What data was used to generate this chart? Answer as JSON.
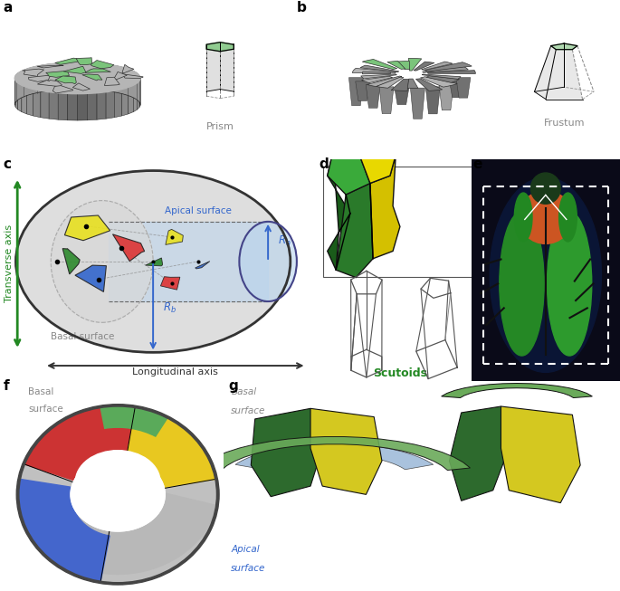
{
  "fig_width": 6.85,
  "fig_height": 6.53,
  "background": "#ffffff",
  "panel_label_fontsize": 11,
  "panel_label_fontweight": "bold",
  "prism_label": "Prism",
  "frustum_label": "Frustum",
  "scutoids_label": "Scutoids",
  "transverse_axis_label": "Transverse axis",
  "longitudinal_axis_label": "Longitudinal axis",
  "apical_surface_label": "Apical surface",
  "basal_surface_label": "Basal surface",
  "green_cell": "#7bc47b",
  "green_dark1": "#1a5c1a",
  "green_dark2": "#236e23",
  "green_mid": "#2d8a2d",
  "green_top": "#3aaa3a",
  "green_light": "#8aba5a",
  "yellow_cell": "#e8d020",
  "yellow_dark": "#c8aa00",
  "yellow_light": "#f0dd50",
  "red_cell": "#dd3333",
  "blue_cell": "#3366cc",
  "gray_dark": "#444444",
  "gray_mid": "#888888",
  "gray_light": "#cccccc",
  "gray_very_light": "#e8e8e8",
  "blue_apical": "#b8d4ee",
  "blue_arrow": "#3366cc",
  "green_arrow": "#228822",
  "label_gray": "#888888",
  "label_green": "#228822",
  "label_blue": "#3366cc"
}
